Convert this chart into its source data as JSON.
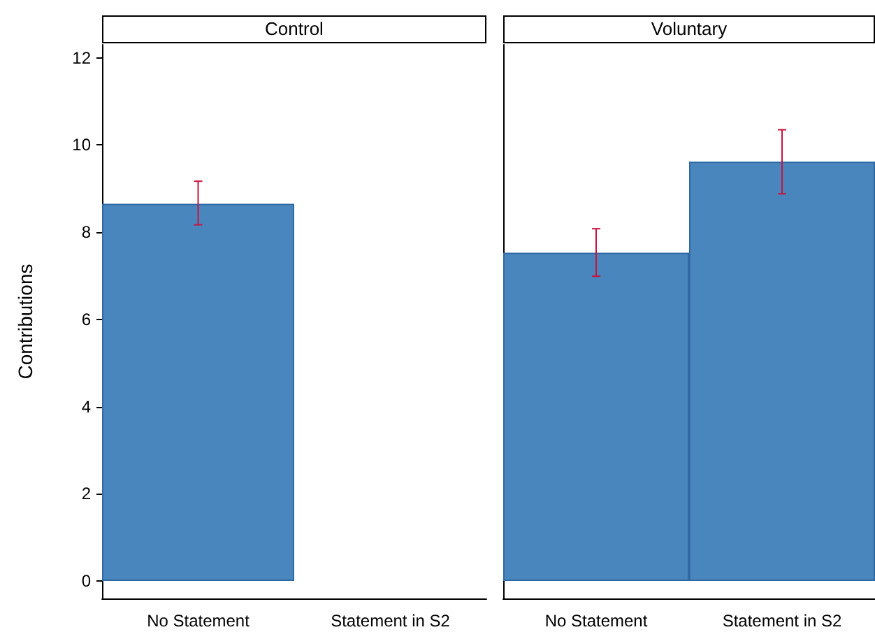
{
  "chart_data": [
    {
      "type": "bar",
      "title": "Control",
      "ylabel": "Contributions",
      "categories": [
        "No Statement",
        "Statement in S2"
      ],
      "series": [
        {
          "color": "#4a86be",
          "values": [
            8.65,
            null
          ],
          "errors": [
            [
              8.17,
              9.17
            ],
            null
          ]
        }
      ],
      "ylim": [
        -0.4,
        12.3
      ],
      "yticks": [
        0,
        2,
        4,
        6,
        8,
        10,
        12
      ],
      "grid": false
    },
    {
      "type": "bar",
      "title": "Voluntary",
      "categories": [
        "No Statement",
        "Statement in S2"
      ],
      "series": [
        {
          "color": "#4a86be",
          "values": [
            7.53,
            9.62
          ],
          "errors": [
            [
              6.99,
              8.08
            ],
            [
              8.88,
              10.35
            ]
          ]
        }
      ],
      "ylim": [
        -0.4,
        12.3
      ],
      "yticks": [
        0,
        2,
        4,
        6,
        8,
        10,
        12
      ],
      "grid": false,
      "tick_labels": "x"
    }
  ]
}
